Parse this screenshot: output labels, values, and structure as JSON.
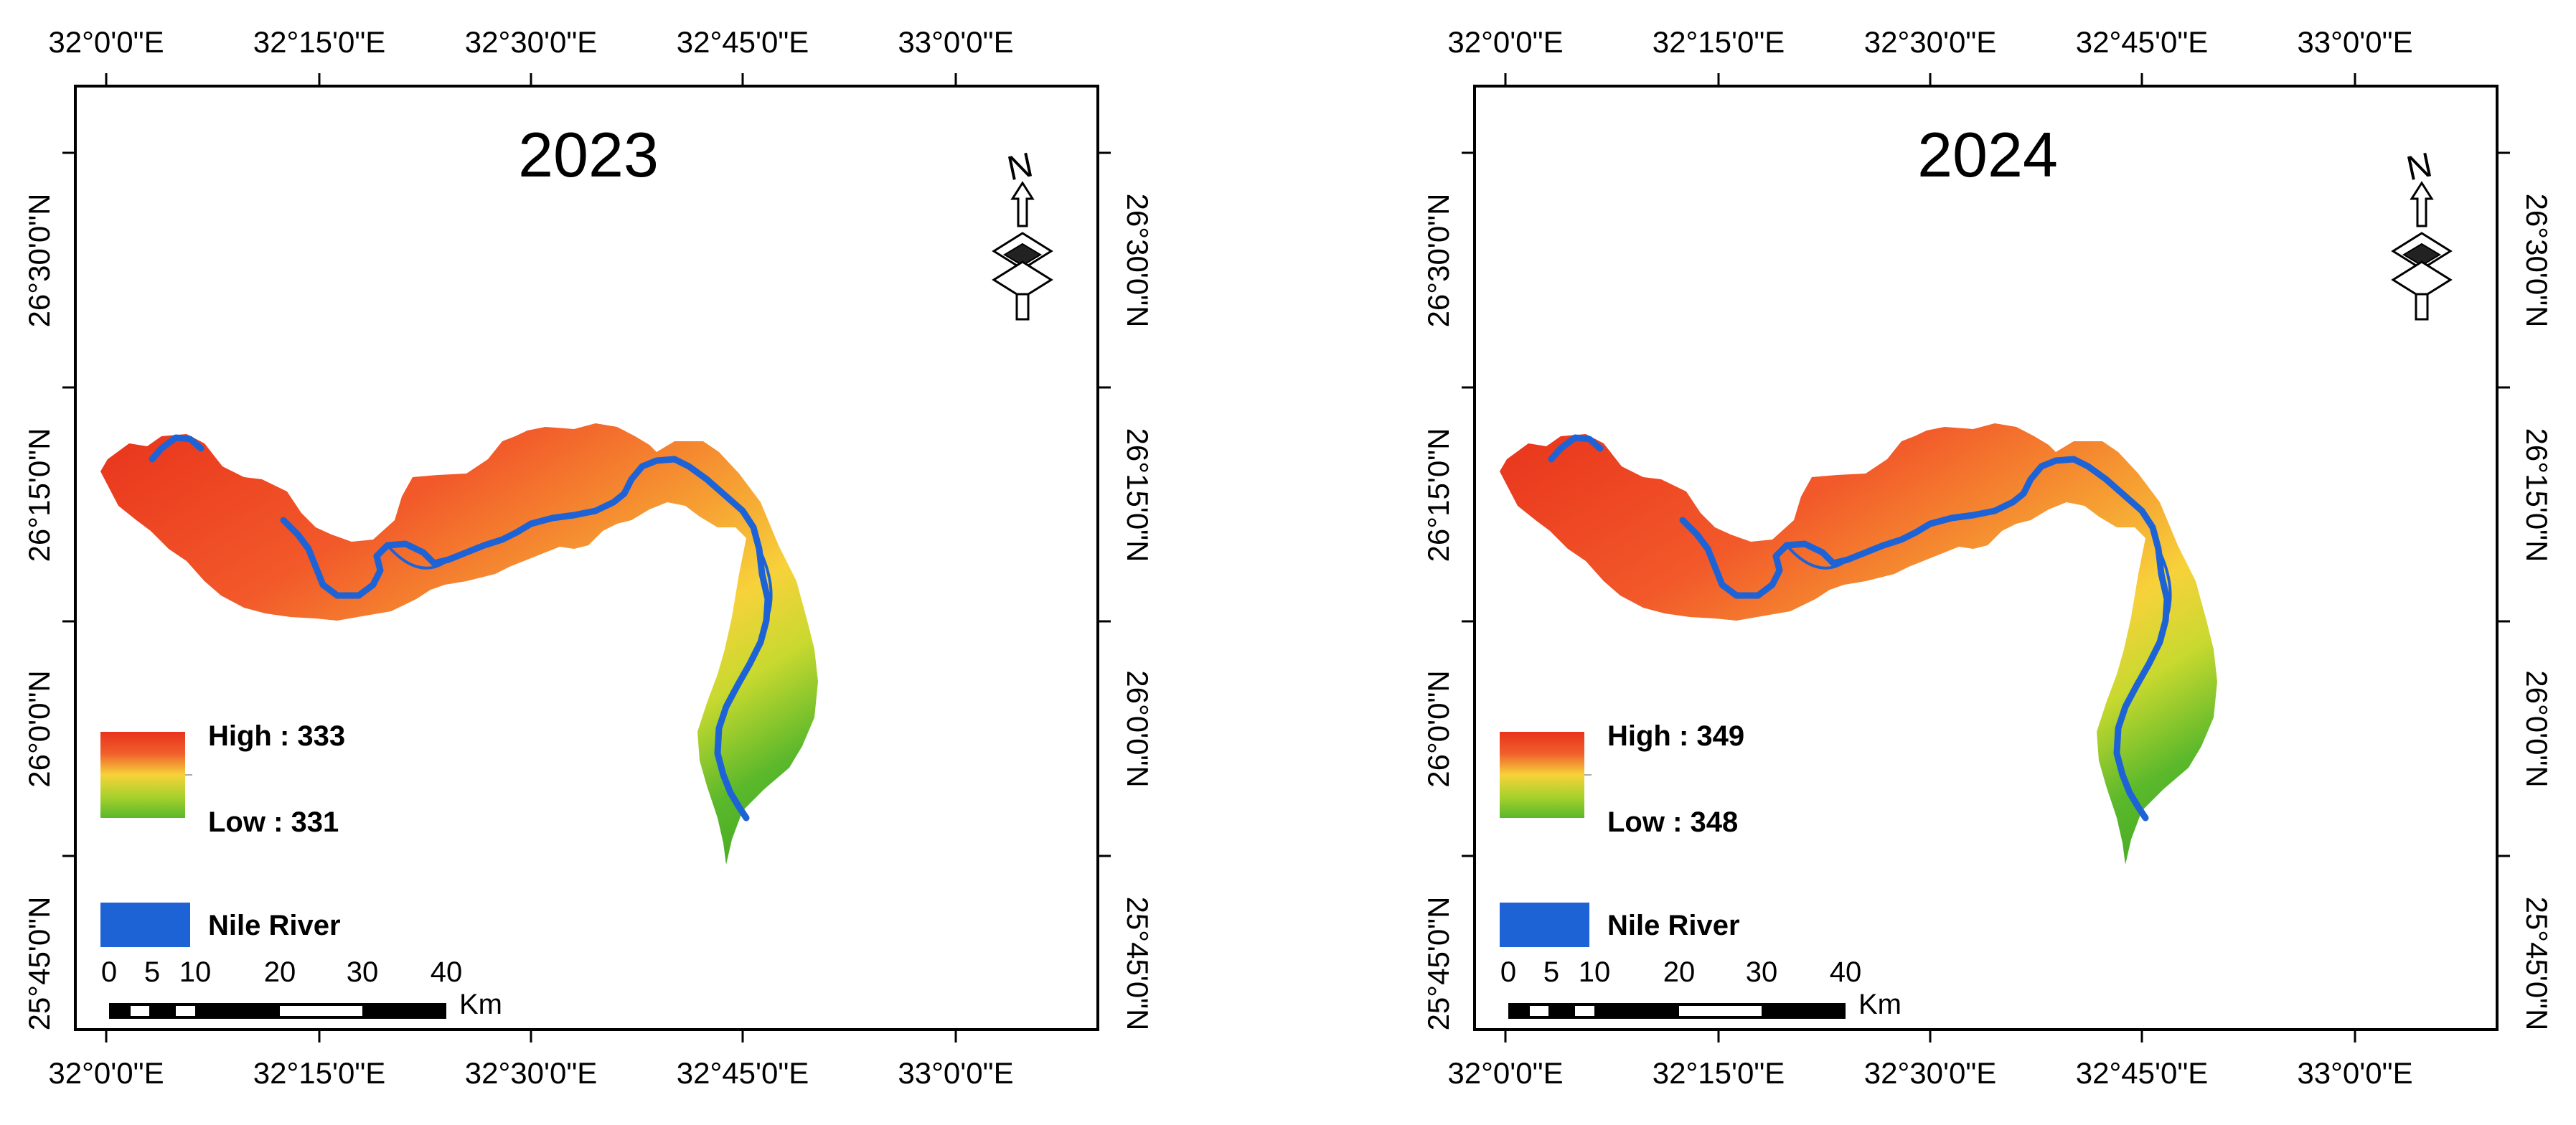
{
  "axes": {
    "lon_labels": [
      "32°0'0\"E",
      "32°15'0\"E",
      "32°30'0\"E",
      "32°45'0\"E",
      "33°0'0\"E"
    ],
    "lat_labels": [
      "26°30'0\"N",
      "26°15'0\"N",
      "26°0'0\"N",
      "25°45'0\"N"
    ]
  },
  "panels": [
    {
      "year": "2023",
      "legend": {
        "high": "High : 333",
        "low": "Low : 331",
        "river": "Nile River"
      }
    },
    {
      "year": "2024",
      "legend": {
        "high": "High : 349",
        "low": "Low : 348",
        "river": "Nile River"
      }
    }
  ],
  "north_arrow": {
    "label": "N"
  },
  "scale_bar": {
    "ticks": [
      "0",
      "5",
      "10",
      "20",
      "30",
      "40"
    ],
    "unit": "Km"
  },
  "colors": {
    "high": "#e8331c",
    "mid": "#f7d23a",
    "low": "#5ab82b",
    "river": "#1e63d6"
  }
}
